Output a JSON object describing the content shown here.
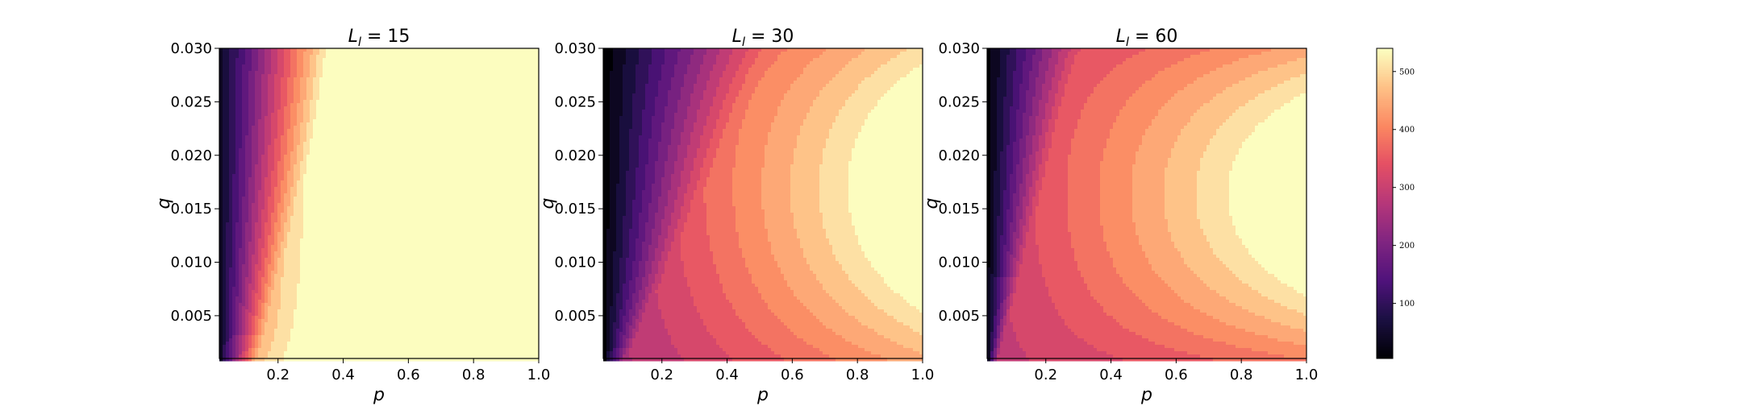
{
  "chart_data": {
    "type": "heatmap",
    "subtype": "filled-contour",
    "colormap": "magma",
    "grid": false,
    "panels": [
      {
        "title_main": "L",
        "title_sub": "l",
        "title_rest": " = 15",
        "xlabel": "p",
        "ylabel": "q",
        "xlim": [
          0.02,
          1.0
        ],
        "ylim": [
          0.001,
          0.03
        ],
        "xticks": [
          0.2,
          0.4,
          0.6,
          0.8,
          1.0
        ],
        "xtick_labels": [
          "0.2",
          "0.4",
          "0.6",
          "0.8",
          "1.0"
        ],
        "yticks": [
          0.005,
          0.01,
          0.015,
          0.02,
          0.025,
          0.03
        ],
        "ytick_labels": [
          "0.005",
          "0.010",
          "0.015",
          "0.020",
          "0.025",
          "0.030"
        ],
        "approx_value_range": [
          5,
          540
        ],
        "contour_shape": "near-vertical bands with slight lean toward low p at high q"
      },
      {
        "title_main": "L",
        "title_sub": "l",
        "title_rest": " = 30",
        "xlabel": "p",
        "ylabel": "q",
        "xlim": [
          0.02,
          1.0
        ],
        "ylim": [
          0.001,
          0.03
        ],
        "xticks": [
          0.2,
          0.4,
          0.6,
          0.8,
          1.0
        ],
        "xtick_labels": [
          "0.2",
          "0.4",
          "0.6",
          "0.8",
          "1.0"
        ],
        "yticks": [
          0.005,
          0.01,
          0.015,
          0.02,
          0.025,
          0.03
        ],
        "ytick_labels": [
          "0.005",
          "0.010",
          "0.015",
          "0.020",
          "0.025",
          "0.030"
        ],
        "approx_value_range": [
          5,
          540
        ],
        "contour_shape": "curved bands bulging toward low p at mid q"
      },
      {
        "title_main": "L",
        "title_sub": "l",
        "title_rest": " = 60",
        "xlabel": "p",
        "ylabel": "q",
        "xlim": [
          0.02,
          1.0
        ],
        "ylim": [
          0.001,
          0.03
        ],
        "xticks": [
          0.2,
          0.4,
          0.6,
          0.8,
          1.0
        ],
        "xtick_labels": [
          "0.2",
          "0.4",
          "0.6",
          "0.8",
          "1.0"
        ],
        "yticks": [
          0.005,
          0.01,
          0.015,
          0.02,
          0.025,
          0.03
        ],
        "ytick_labels": [
          "0.005",
          "0.010",
          "0.015",
          "0.020",
          "0.025",
          "0.030"
        ],
        "approx_value_range": [
          5,
          540
        ],
        "contour_shape": "strongly curved bands, maximum region centered near q = 0.017 at high p"
      }
    ],
    "colorbar": {
      "range": [
        5,
        540
      ],
      "ticks": [
        100,
        200,
        300,
        400,
        500
      ],
      "tick_labels": [
        "100",
        "200",
        "300",
        "400",
        "500"
      ]
    }
  }
}
